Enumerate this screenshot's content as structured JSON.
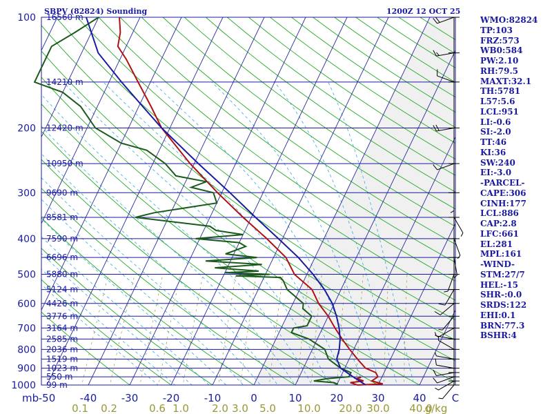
{
  "chart_data": {
    "type": "line",
    "title": "SBPV (82824) Sounding",
    "valid_time": "1200Z 12 OCT 25",
    "pressure_axis_label": "mb",
    "pressure_levels": [
      100,
      200,
      300,
      400,
      500,
      600,
      700,
      800,
      900,
      1000
    ],
    "temperature_ticks": [
      "-50",
      "-40",
      "-30",
      "-20",
      "-10",
      "0",
      "10",
      "20",
      "30",
      "40"
    ],
    "mixing_ratio_ticks": [
      "0.1",
      "0.2",
      "0.6",
      "1.0",
      "2.0",
      "3.0",
      "5.0",
      "10.0",
      "20.0",
      "30.0",
      "40.0"
    ],
    "mixing_ratio_unit": "g/kg",
    "temperature_axis_end": "C",
    "height_labels": [
      {
        "p": 100,
        "text": "16560 m"
      },
      {
        "p": 150,
        "text": "14210 m"
      },
      {
        "p": 200,
        "text": "12420 m"
      },
      {
        "p": 250,
        "text": "10950 m"
      },
      {
        "p": 300,
        "text": "9690 m"
      },
      {
        "p": 350,
        "text": "8581 m"
      },
      {
        "p": 400,
        "text": "7590 m"
      },
      {
        "p": 450,
        "text": "6696 m"
      },
      {
        "p": 500,
        "text": "5880 m"
      },
      {
        "p": 550,
        "text": "5124 m"
      },
      {
        "p": 600,
        "text": "4426 m"
      },
      {
        "p": 650,
        "text": "3776 m"
      },
      {
        "p": 700,
        "text": "3164 m"
      },
      {
        "p": 750,
        "text": "2585 m"
      },
      {
        "p": 800,
        "text": "2036 m"
      },
      {
        "p": 850,
        "text": "1519 m"
      },
      {
        "p": 900,
        "text": "1023 m"
      },
      {
        "p": 950,
        "text": "550 m"
      },
      {
        "p": 1000,
        "text": "99 m"
      }
    ],
    "series": [
      {
        "name": "Temperature",
        "color": "#b01010",
        "points": [
          [
            953,
            25
          ],
          [
            960,
            24
          ],
          [
            975,
            26
          ],
          [
            985,
            23
          ],
          [
            1000,
            25
          ],
          [
            993,
            31
          ],
          [
            975,
            28
          ],
          [
            950,
            29
          ],
          [
            925,
            28
          ],
          [
            900,
            25
          ],
          [
            850,
            22
          ],
          [
            800,
            19
          ],
          [
            750,
            16
          ],
          [
            700,
            13
          ],
          [
            650,
            10
          ],
          [
            600,
            6.2
          ],
          [
            550,
            3
          ],
          [
            500,
            -3
          ],
          [
            450,
            -7
          ],
          [
            400,
            -13.8
          ],
          [
            350,
            -22
          ],
          [
            300,
            -31
          ],
          [
            250,
            -41
          ],
          [
            200,
            -52
          ],
          [
            175,
            -57
          ],
          [
            150,
            -63
          ],
          [
            130,
            -68.5
          ],
          [
            120,
            -72
          ],
          [
            110,
            -73
          ],
          [
            100,
            -75
          ]
        ]
      },
      {
        "name": "Dewpoint",
        "color": "#1a5a1a",
        "points": [
          [
            1000,
            20
          ],
          [
            993,
            20
          ],
          [
            985,
            19
          ],
          [
            975,
            14
          ],
          [
            960,
            17
          ],
          [
            950,
            22
          ],
          [
            925,
            22
          ],
          [
            900,
            19
          ],
          [
            850,
            15
          ],
          [
            800,
            13
          ],
          [
            750,
            8
          ],
          [
            720,
            3
          ],
          [
            700,
            3
          ],
          [
            690,
            6
          ],
          [
            650,
            6
          ],
          [
            620,
            3
          ],
          [
            600,
            2.5
          ],
          [
            550,
            -3
          ],
          [
            520,
            -5
          ],
          [
            510,
            -6
          ],
          [
            505,
            -17
          ],
          [
            500,
            -9
          ],
          [
            495,
            -20
          ],
          [
            490,
            -12
          ],
          [
            480,
            -23
          ],
          [
            470,
            -12
          ],
          [
            460,
            -26
          ],
          [
            450,
            -14
          ],
          [
            440,
            -22
          ],
          [
            420,
            -18
          ],
          [
            410,
            -20
          ],
          [
            400,
            -31
          ],
          [
            390,
            -20
          ],
          [
            380,
            -27
          ],
          [
            370,
            -29
          ],
          [
            350,
            -48
          ],
          [
            340,
            -44
          ],
          [
            320,
            -30
          ],
          [
            300,
            -32
          ],
          [
            290,
            -38
          ],
          [
            280,
            -35
          ],
          [
            270,
            -43
          ],
          [
            250,
            -47
          ],
          [
            230,
            -53
          ],
          [
            220,
            -60
          ],
          [
            200,
            -68
          ],
          [
            175,
            -74
          ],
          [
            160,
            -80
          ],
          [
            150,
            -88
          ],
          [
            140,
            -88
          ],
          [
            120,
            -88
          ],
          [
            110,
            -84
          ],
          [
            100,
            -80
          ]
        ]
      },
      {
        "name": "Parcel",
        "color": "#1a1aa0",
        "points": [
          [
            1000,
            27
          ],
          [
            950,
            23
          ],
          [
            900,
            19
          ],
          [
            850,
            17
          ],
          [
            800,
            16.5
          ],
          [
            750,
            15.5
          ],
          [
            700,
            14
          ],
          [
            650,
            12
          ],
          [
            600,
            9.5
          ],
          [
            550,
            6
          ],
          [
            500,
            1.5
          ],
          [
            450,
            -4
          ],
          [
            400,
            -11
          ],
          [
            350,
            -19
          ],
          [
            300,
            -28
          ],
          [
            250,
            -39
          ],
          [
            200,
            -52
          ],
          [
            175,
            -59
          ],
          [
            150,
            -67
          ],
          [
            125,
            -76
          ],
          [
            100,
            -83
          ]
        ]
      }
    ],
    "wind_barbs": [
      {
        "p": 1000,
        "dir": 220,
        "spd": 5
      },
      {
        "p": 975,
        "dir": 240,
        "spd": 5
      },
      {
        "p": 950,
        "dir": 250,
        "spd": 10
      },
      {
        "p": 925,
        "dir": 260,
        "spd": 10
      },
      {
        "p": 900,
        "dir": 280,
        "spd": 10
      },
      {
        "p": 850,
        "dir": 280,
        "spd": 5
      },
      {
        "p": 800,
        "dir": 300,
        "spd": 5
      },
      {
        "p": 750,
        "dir": 280,
        "spd": 5
      },
      {
        "p": 700,
        "dir": 240,
        "spd": 5
      },
      {
        "p": 650,
        "dir": 220,
        "spd": 5
      },
      {
        "p": 600,
        "dir": 230,
        "spd": 10
      },
      {
        "p": 550,
        "dir": 210,
        "spd": 10
      },
      {
        "p": 500,
        "dir": 200,
        "spd": 5
      },
      {
        "p": 450,
        "dir": 170,
        "spd": 5
      },
      {
        "p": 400,
        "dir": 160,
        "spd": 5
      },
      {
        "p": 350,
        "dir": 150,
        "spd": 5
      },
      {
        "p": 300,
        "dir": 180,
        "spd": 5
      },
      {
        "p": 250,
        "dir": 250,
        "spd": 10
      },
      {
        "p": 200,
        "dir": 260,
        "spd": 20
      },
      {
        "p": 150,
        "dir": 290,
        "spd": 10
      },
      {
        "p": 125,
        "dir": 260,
        "spd": 15
      },
      {
        "p": 100,
        "dir": 250,
        "spd": 20
      }
    ]
  },
  "indices": [
    "WMO:82824",
    "TP:103",
    "FRZ:573",
    "WB0:584",
    "PW:2.10",
    "RH:79.5",
    "MAXT:32.1",
    "TH:5781",
    "L57:5.6",
    "LCL:951",
    "LI:-0.6",
    "SI:-2.0",
    "TT:46",
    "KI:36",
    "SW:240",
    "EI:-3.0",
    "-PARCEL-",
    "CAPE:306",
    "CINH:177",
    "LCL:886",
    "CAP:2.8",
    "LFC:661",
    "EL:281",
    "MPL:161",
    "-WIND-",
    "STM:27/7",
    "HEL:-15",
    "SHR-:0.0",
    "SRDS:122",
    "EHI:0.1",
    "BRN:77.3",
    "BSHR:4"
  ]
}
